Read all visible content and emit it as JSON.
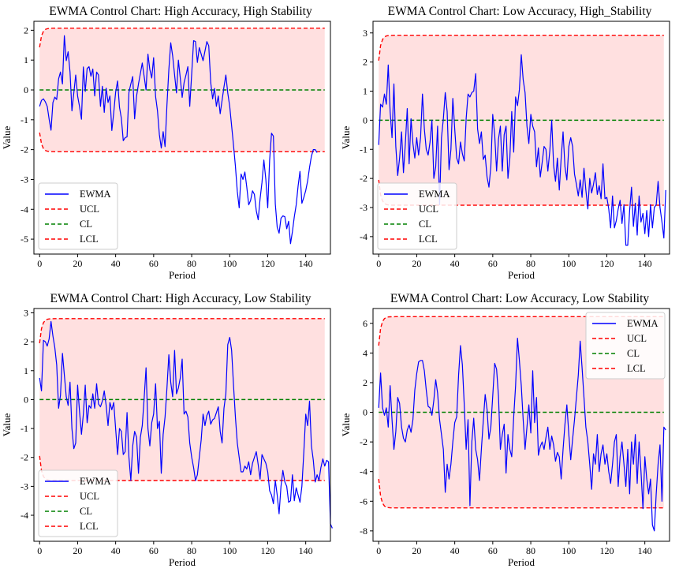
{
  "colors": {
    "ewma": "#0000ff",
    "ucl": "#ff0000",
    "cl": "#008000",
    "lcl": "#ff0000",
    "band": "#ffe0e0"
  },
  "chart_data": [
    {
      "type": "line",
      "title": "EWMA Control Chart: High Accuracy, High Stability",
      "xlabel": "Period",
      "ylabel": "Value",
      "xlim": [
        -3,
        153
      ],
      "ylim": [
        -5.5,
        2.3
      ],
      "xticks": [
        0,
        20,
        40,
        60,
        80,
        100,
        120,
        140
      ],
      "yticks": [
        2,
        1,
        0,
        -1,
        -2,
        -3,
        -4,
        -5
      ],
      "limits": {
        "ucl": 2.07,
        "cl": 0,
        "lcl": -2.07,
        "ucl_start": 1.43
      },
      "legend": {
        "position": "lower-left",
        "entries": [
          "EWMA",
          "UCL",
          "CL",
          "LCL"
        ]
      },
      "series": [
        {
          "name": "EWMA",
          "x_start": 0,
          "x_step": 1,
          "values": [
            -0.55,
            -0.35,
            -0.3,
            -0.4,
            -0.55,
            -0.98,
            -1.35,
            -0.42,
            -0.24,
            -0.32,
            0.37,
            0.6,
            0.2,
            1.82,
            0.98,
            1.28,
            0.6,
            -0.7,
            -0.1,
            0.5,
            -0.2,
            -0.55,
            -0.98,
            0.77,
            -0.05,
            0.72,
            0.78,
            0.46,
            0.7,
            -0.2,
            0.6,
            0.5,
            -0.55,
            0.12,
            -0.75,
            0.06,
            -0.42,
            -0.2,
            -1.36,
            -0.77,
            -0.08,
            0.3,
            -0.58,
            -0.95,
            -1.7,
            -1.6,
            -1.57,
            -0.08,
            0.2,
            0.45,
            -0.97,
            -0.2,
            0.2,
            0.55,
            0.9,
            0.45,
            0.0,
            1.2,
            0.68,
            0.4,
            1.08,
            -0.22,
            -0.7,
            -1.5,
            -1.95,
            -1.4,
            -1.9,
            -0.5,
            0.68,
            1.58,
            1.15,
            0.5,
            -0.1,
            1.0,
            0.4,
            -0.25,
            0.24,
            0.5,
            0.78,
            -0.55,
            0.55,
            1.65,
            1.62,
            0.92,
            1.42,
            1.2,
            0.98,
            1.3,
            1.62,
            1.48,
            0.25,
            -0.3,
            0.05,
            -0.55,
            -0.2,
            -0.8,
            -0.35,
            0.1,
            0.5,
            -0.1,
            -0.55,
            -1.2,
            -1.85,
            -2.55,
            -3.4,
            -3.95,
            -2.82,
            -3.0,
            -2.75,
            -3.25,
            -3.85,
            -3.7,
            -3.38,
            -3.5,
            -4.05,
            -4.35,
            -3.65,
            -3.1,
            -2.35,
            -3.0,
            -3.95,
            -2.35,
            -1.45,
            -1.55,
            -3.82,
            -4.6,
            -4.8,
            -4.3,
            -4.22,
            -4.25,
            -4.65,
            -4.4,
            -5.15,
            -4.75,
            -4.25,
            -3.85,
            -3.22,
            -2.73,
            -3.8,
            -3.6,
            -3.37,
            -3.05,
            -2.6,
            -2.22,
            -2.0,
            -2.0,
            -2.1
          ]
        }
      ]
    },
    {
      "type": "line",
      "title": "EWMA Control Chart: Low Accuracy, High_Stability",
      "xlabel": "Period",
      "ylabel": "Value",
      "xlim": [
        -3,
        153
      ],
      "ylim": [
        -4.6,
        3.4
      ],
      "xticks": [
        0,
        20,
        40,
        60,
        80,
        100,
        120,
        140
      ],
      "yticks": [
        3,
        2,
        1,
        0,
        -1,
        -2,
        -3,
        -4
      ],
      "limits": {
        "ucl": 2.92,
        "cl": 0,
        "lcl": -2.92,
        "ucl_start": 2.05
      },
      "legend": {
        "position": "lower-left",
        "entries": [
          "EWMA",
          "UCL",
          "CL",
          "LCL"
        ]
      },
      "series": [
        {
          "name": "EWMA",
          "x_start": 0,
          "x_step": 1,
          "values": [
            -0.85,
            0.55,
            0.45,
            0.9,
            0.55,
            1.9,
            0.3,
            -0.6,
            1.25,
            -0.9,
            -1.9,
            -1.3,
            -0.4,
            -1.8,
            -0.8,
            0.4,
            -1.5,
            0.05,
            -0.8,
            -1.3,
            -0.6,
            -1.2,
            -0.6,
            0.9,
            -0.3,
            -1.0,
            -1.2,
            -0.75,
            0.0,
            -2.0,
            -1.6,
            -0.2,
            -2.9,
            -0.6,
            0.05,
            0.95,
            0.3,
            -1.7,
            -1.0,
            0.75,
            -0.3,
            -1.3,
            -1.5,
            -0.75,
            -1.15,
            -1.4,
            0.05,
            0.9,
            0.8,
            0.95,
            1.0,
            1.6,
            -0.3,
            -0.8,
            -0.4,
            -1.35,
            -1.2,
            -1.95,
            -2.3,
            -1.6,
            0.2,
            -0.5,
            -1.75,
            -0.65,
            -0.2,
            -1.75,
            -0.5,
            -0.2,
            -2.0,
            -1.3,
            0.3,
            -1.1,
            0.8,
            0.5,
            1.05,
            2.25,
            1.4,
            0.95,
            -0.2,
            -0.8,
            0.2,
            -0.2,
            -0.4,
            -1.6,
            -0.95,
            -1.95,
            -1.45,
            -0.9,
            -1.0,
            -1.75,
            -1.05,
            0.0,
            -1.55,
            -2.1,
            -1.3,
            -2.4,
            -1.3,
            -0.4,
            -1.6,
            -2.05,
            -0.9,
            -0.6,
            -0.9,
            -1.85,
            -2.2,
            -2.6,
            -2.05,
            -2.65,
            -1.65,
            -2.4,
            -3.05,
            -2.0,
            -2.5,
            -2.2,
            -1.8,
            -2.55,
            -2.25,
            -2.7,
            -1.5,
            -2.7,
            -2.65,
            -3.05,
            -3.7,
            -2.6,
            -3.7,
            -3.45,
            -3.05,
            -2.75,
            -3.55,
            -2.9,
            -4.3,
            -4.3,
            -3.1,
            -2.3,
            -3.65,
            -2.85,
            -3.95,
            -2.6,
            -3.5,
            -3.2,
            -3.9,
            -3.1,
            -4.0,
            -2.9,
            -3.7,
            -3.0,
            -2.9,
            -2.1,
            -3.0,
            -3.5,
            -4.05,
            -2.4
          ]
        }
      ]
    },
    {
      "type": "line",
      "title": "EWMA Control Chart: High Accuracy, Low Stability",
      "xlabel": "Period",
      "ylabel": "Value",
      "xlim": [
        -3,
        153
      ],
      "ylim": [
        -4.9,
        3.15
      ],
      "xticks": [
        0,
        20,
        40,
        60,
        80,
        100,
        120,
        140
      ],
      "yticks": [
        3,
        2,
        1,
        0,
        -1,
        -2,
        -3,
        -4
      ],
      "limits": {
        "ucl": 2.8,
        "cl": 0,
        "lcl": -2.8,
        "ucl_start": 1.95
      },
      "legend": {
        "position": "lower-left",
        "entries": [
          "EWMA",
          "UCL",
          "CL",
          "LCL"
        ]
      },
      "series": [
        {
          "name": "EWMA",
          "x_start": 0,
          "x_step": 1,
          "values": [
            0.75,
            0.3,
            2.05,
            2.0,
            1.85,
            2.1,
            2.7,
            2.2,
            1.8,
            1.2,
            -0.3,
            0.15,
            1.6,
            0.85,
            0.1,
            -0.2,
            0.6,
            -1.0,
            -1.7,
            -1.5,
            0.5,
            -0.4,
            -1.2,
            -0.5,
            0.5,
            -0.8,
            -0.2,
            -0.3,
            0.2,
            -0.3,
            0.55,
            -0.15,
            -0.25,
            -0.05,
            0.3,
            -0.2,
            -0.9,
            -0.1,
            -0.35,
            -0.1,
            -1.0,
            -1.9,
            -1.0,
            -1.1,
            -1.9,
            -1.8,
            -0.45,
            -2.0,
            -2.8,
            -1.6,
            -1.1,
            -1.3,
            -2.55,
            -1.3,
            -0.9,
            0.05,
            1.1,
            -1.0,
            -1.6,
            -0.8,
            -0.5,
            0.55,
            -1.0,
            -0.75,
            -2.55,
            -1.2,
            -0.6,
            0.4,
            1.55,
            0.6,
            0.1,
            1.7,
            0.2,
            0.4,
            0.75,
            1.4,
            -0.5,
            -0.4,
            -0.6,
            -1.5,
            -2.0,
            -2.35,
            -2.8,
            -2.6,
            -2.0,
            -1.4,
            -0.5,
            -0.9,
            -0.55,
            -0.4,
            -0.85,
            -0.7,
            -0.65,
            -0.45,
            -0.25,
            -1.1,
            -1.5,
            -0.3,
            0.2,
            1.9,
            2.15,
            1.7,
            0.5,
            -0.6,
            -1.5,
            -2.0,
            -2.5,
            -2.5,
            -2.3,
            -2.4,
            -2.15,
            -2.6,
            -2.2,
            -2.0,
            -1.8,
            -2.25,
            -2.75,
            -1.9,
            -2.05,
            -2.2,
            -2.5,
            -3.15,
            -3.3,
            -3.6,
            -2.8,
            -3.3,
            -3.95,
            -3.0,
            -2.45,
            -2.85,
            -3.0,
            -3.55,
            -3.5,
            -2.6,
            -3.5,
            -3.05,
            -3.3,
            -3.55,
            -3.0,
            -1.8,
            -0.5,
            -0.9,
            -0.05,
            -1.6,
            -2.1,
            -2.85,
            -2.6,
            -2.8,
            -2.35,
            -2.05,
            -2.3,
            -2.1,
            -2.15,
            -4.3,
            -4.45
          ]
        }
      ]
    },
    {
      "type": "line",
      "title": "EWMA Control Chart: Low Accuracy, Low Stability",
      "xlabel": "Period",
      "ylabel": "Value",
      "xlim": [
        -3,
        153
      ],
      "ylim": [
        -8.7,
        7.0
      ],
      "xticks": [
        0,
        20,
        40,
        60,
        80,
        100,
        120,
        140
      ],
      "yticks": [
        6,
        4,
        2,
        0,
        -2,
        -4,
        -6,
        -8
      ],
      "limits": {
        "ucl": 6.45,
        "cl": 0,
        "lcl": -6.45,
        "ucl_start": 4.5
      },
      "legend": {
        "position": "upper-right",
        "entries": [
          "EWMA",
          "UCL",
          "CL",
          "LCL"
        ]
      },
      "series": [
        {
          "name": "EWMA",
          "x_start": 0,
          "x_step": 1,
          "values": [
            0.3,
            2.65,
            0.3,
            -0.2,
            0.3,
            -1.0,
            1.8,
            -0.5,
            -2.5,
            -1.3,
            1.0,
            0.6,
            -1.0,
            -1.75,
            -2.0,
            -1.2,
            -0.85,
            -1.35,
            -0.5,
            1.5,
            2.6,
            3.4,
            3.5,
            3.5,
            2.8,
            1.5,
            0.4,
            0.3,
            -0.2,
            0.8,
            2.2,
            1.3,
            -0.5,
            -1.5,
            -2.5,
            -5.4,
            -3.5,
            -4.5,
            -3.5,
            -2.0,
            -0.7,
            -0.3,
            2.5,
            4.5,
            3.2,
            0.5,
            -2.5,
            -0.5,
            -6.3,
            -2.0,
            -0.4,
            -2.5,
            -3.2,
            -4.6,
            -2.5,
            -0.6,
            1.2,
            0.2,
            -1.8,
            -1.0,
            1.1,
            3.3,
            2.9,
            1.1,
            -2.5,
            -1.5,
            -0.8,
            -4.1,
            -1.5,
            -2.5,
            -3.0,
            -0.3,
            1.8,
            5.0,
            3.5,
            1.8,
            -0.5,
            -2.5,
            -1.0,
            0.5,
            -1.4,
            2.8,
            -0.7,
            1.0,
            -2.9,
            -2.3,
            -2.0,
            -2.5,
            -1.7,
            -1.0,
            -2.5,
            -1.6,
            -2.2,
            -3.3,
            -2.7,
            -3.0,
            -4.5,
            -2.5,
            -0.8,
            0.5,
            -1.5,
            -3.2,
            -1.8,
            -0.5,
            1.0,
            2.5,
            4.8,
            3.0,
            1.0,
            -1.0,
            -2.0,
            -3.5,
            -5.2,
            -2.8,
            -3.5,
            -1.5,
            -4.0,
            -2.8,
            -2.2,
            -3.5,
            -2.8,
            -4.0,
            -4.8,
            -3.5,
            -2.0,
            -1.5,
            -5.0,
            -3.0,
            -2.0,
            -3.5,
            -5.0,
            -2.5,
            -5.5,
            -2.0,
            -3.5,
            -1.5,
            -4.8,
            -2.0,
            -4.0,
            -6.5,
            -3.0,
            -4.5,
            -5.5,
            -4.5,
            -7.6,
            -8.0,
            -5.5,
            -3.5,
            -2.2,
            -6.0,
            -1.0,
            -1.2
          ]
        }
      ]
    }
  ]
}
